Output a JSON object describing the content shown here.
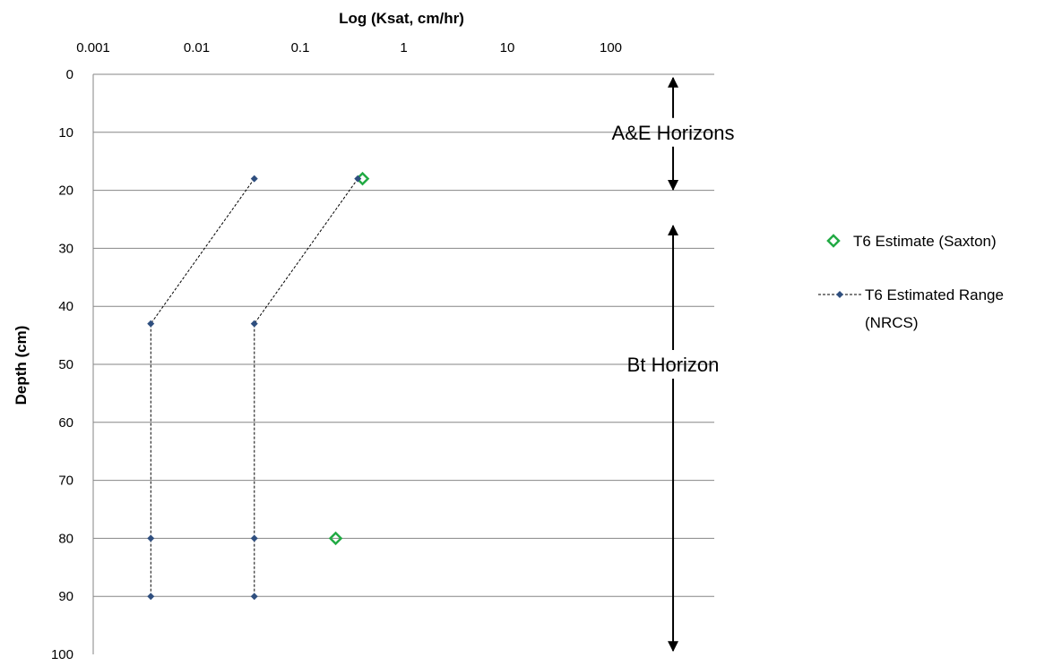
{
  "chart_data": {
    "type": "scatter",
    "title": "",
    "xlabel": "Log (Ksat, cm/hr)",
    "ylabel": "Depth (cm)",
    "x_scale": "log",
    "x_axis_position": "top",
    "xlim": [
      0.001,
      1000
    ],
    "ylim": [
      0,
      100
    ],
    "y_reversed": true,
    "x_ticks": [
      "0.001",
      "0.01",
      "0.1",
      "1",
      "10",
      "100"
    ],
    "y_ticks": [
      "0",
      "10",
      "20",
      "30",
      "40",
      "50",
      "60",
      "70",
      "80",
      "90",
      "100"
    ],
    "grid": "horizontal",
    "legend_position": "right",
    "series": [
      {
        "name": "T6 Estimate (Saxton)",
        "marker": "diamond-open",
        "color": "#22aa44",
        "points": [
          {
            "x": 0.4,
            "y": 18
          },
          {
            "x": 0.22,
            "y": 80
          }
        ]
      },
      {
        "name": "T6 Estimated Range (NRCS)",
        "marker": "diamond-filled",
        "line": "dotted",
        "color": "#2f4f7f",
        "lines": [
          [
            {
              "x": 0.036,
              "y": 18
            },
            {
              "x": 0.0036,
              "y": 43
            },
            {
              "x": 0.0036,
              "y": 80
            },
            {
              "x": 0.0036,
              "y": 90
            }
          ],
          [
            {
              "x": 0.36,
              "y": 18
            },
            {
              "x": 0.036,
              "y": 43
            },
            {
              "x": 0.036,
              "y": 80
            },
            {
              "x": 0.036,
              "y": 90
            }
          ]
        ]
      }
    ],
    "legend": [
      {
        "line1": "T6 Estimate (Saxton)",
        "line2": ""
      },
      {
        "line1": "T6 Estimated Range",
        "line2": "(NRCS)"
      }
    ],
    "annotations": [
      {
        "text": "A&E Horizons",
        "x": 400,
        "y": 10,
        "arrow_from": 0,
        "arrow_to": 20.5
      },
      {
        "text": "Bt Horizon",
        "x": 400,
        "y": 50,
        "arrow_from": 25.5,
        "arrow_to": 100
      }
    ]
  }
}
